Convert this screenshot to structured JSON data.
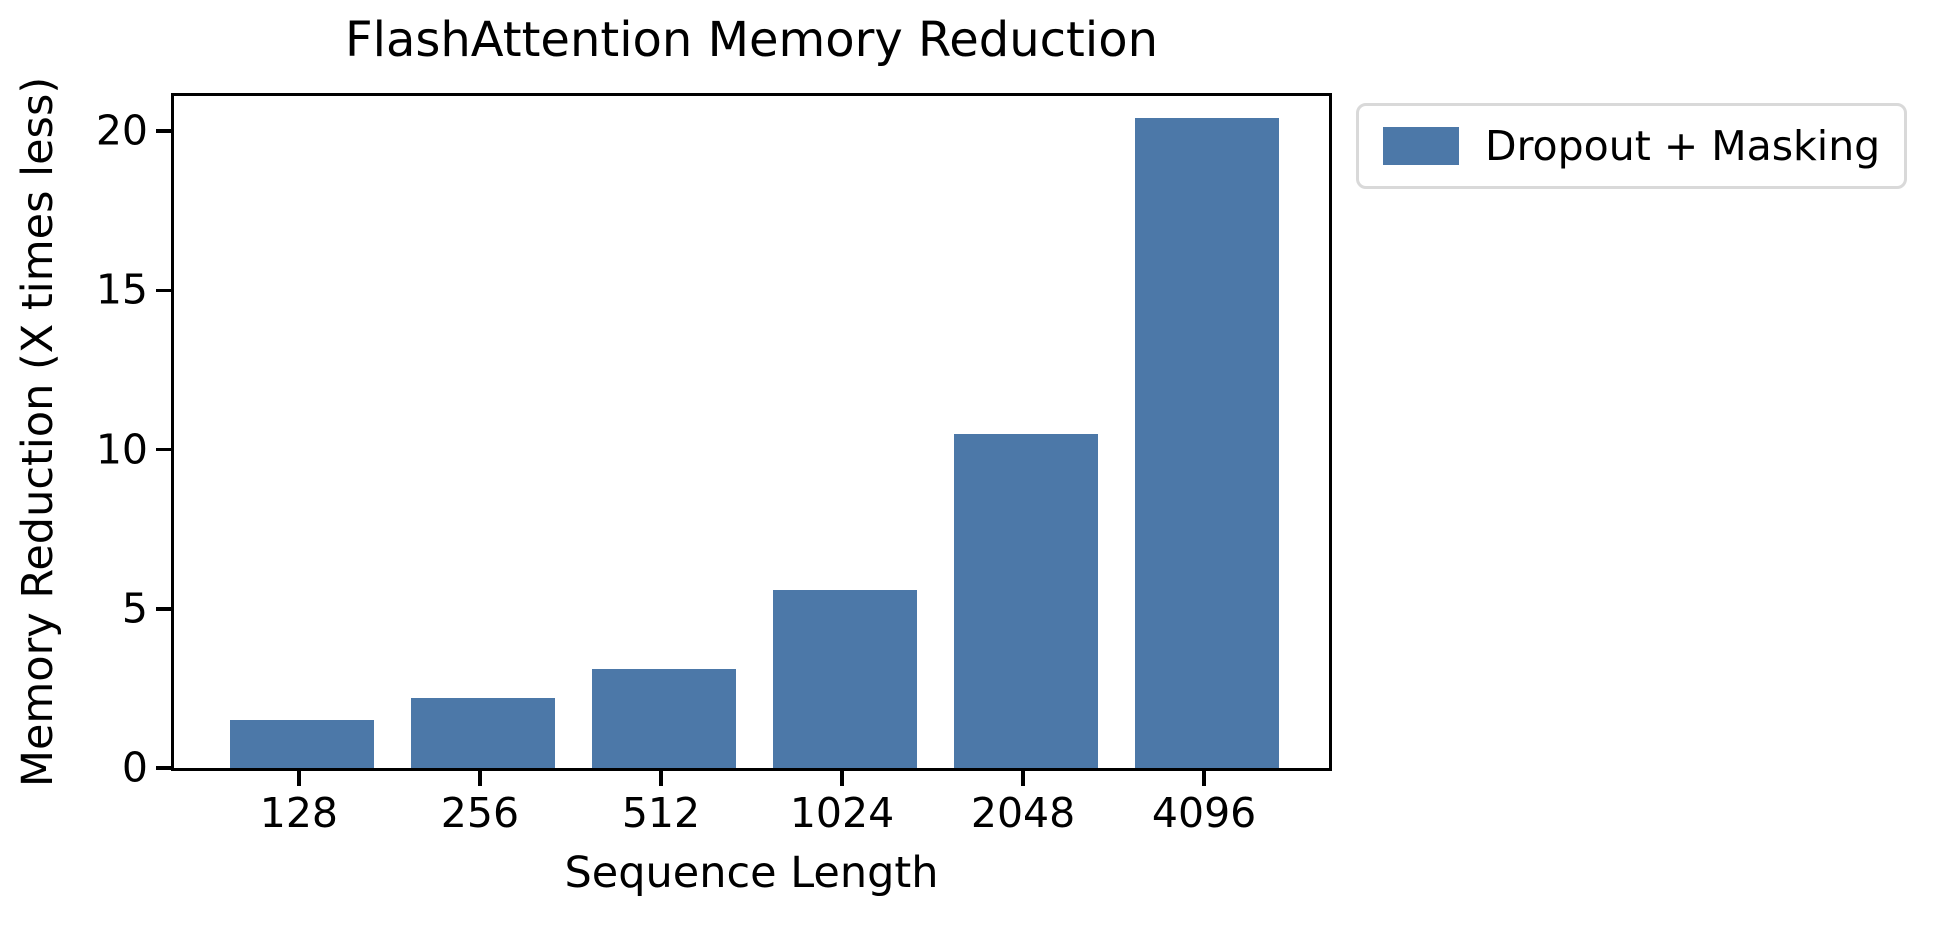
{
  "chart_data": {
    "type": "bar",
    "title": "FlashAttention Memory Reduction",
    "xlabel": "Sequence Length",
    "ylabel": "Memory Reduction (X times less)",
    "categories": [
      "128",
      "256",
      "512",
      "1024",
      "2048",
      "4096"
    ],
    "series": [
      {
        "name": "Dropout + Masking",
        "color": "#4C78A8",
        "values": [
          1.5,
          2.2,
          3.1,
          5.6,
          10.5,
          20.4
        ]
      }
    ],
    "ylim": [
      0,
      21.1
    ],
    "yticks": [
      0,
      5,
      10,
      15,
      20
    ],
    "grid": false,
    "legend_position": "outside-upper-right",
    "bar_width_frac": 0.8,
    "background_color": "#ffffff",
    "axis_color": "#000000",
    "legend_border_color": "#d9d9d9"
  }
}
